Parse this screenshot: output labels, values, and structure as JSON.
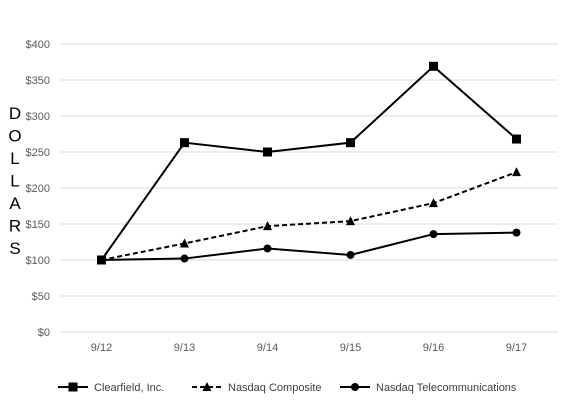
{
  "chart_data": {
    "type": "line",
    "title": "",
    "xlabel": "",
    "ylabel": "DOLLARS",
    "categories": [
      "9/12",
      "9/13",
      "9/14",
      "9/15",
      "9/16",
      "9/17"
    ],
    "ylim": [
      0,
      400
    ],
    "yticks": [
      0,
      50,
      100,
      150,
      200,
      250,
      300,
      350,
      400
    ],
    "ytick_labels": [
      "$0",
      "$50",
      "$100",
      "$150",
      "$200",
      "$250",
      "$300",
      "$350",
      "$400"
    ],
    "grid": true,
    "legend_position": "bottom",
    "series": [
      {
        "name": "Clearfield, Inc.",
        "marker": "square",
        "line": "solid",
        "color": "#000000",
        "values": [
          100,
          263,
          250,
          263,
          369,
          268
        ]
      },
      {
        "name": "Nasdaq Composite",
        "marker": "triangle",
        "line": "dashed",
        "color": "#000000",
        "values": [
          100,
          123,
          147,
          154,
          179,
          222
        ]
      },
      {
        "name": "Nasdaq Telecommunications",
        "marker": "circle",
        "line": "solid",
        "color": "#000000",
        "values": [
          100,
          102,
          116,
          107,
          136,
          138
        ]
      }
    ]
  }
}
